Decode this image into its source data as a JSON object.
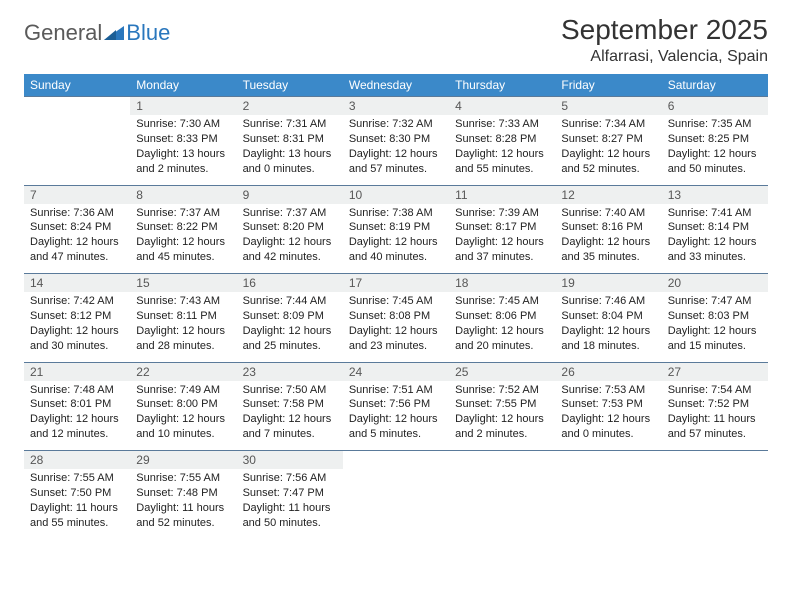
{
  "logo": {
    "text1": "General",
    "text2": "Blue"
  },
  "title": "September 2025",
  "location": "Alfarrasi, Valencia, Spain",
  "colors": {
    "header_bg": "#3b89c9",
    "header_text": "#ffffff",
    "daynum_bg": "#eef0f0",
    "border": "#5a7a9a",
    "logo_gray": "#5a5a5a",
    "logo_blue": "#2a77bd"
  },
  "day_headers": [
    "Sunday",
    "Monday",
    "Tuesday",
    "Wednesday",
    "Thursday",
    "Friday",
    "Saturday"
  ],
  "weeks": [
    [
      null,
      {
        "n": "1",
        "sr": "Sunrise: 7:30 AM",
        "ss": "Sunset: 8:33 PM",
        "dl": "Daylight: 13 hours and 2 minutes."
      },
      {
        "n": "2",
        "sr": "Sunrise: 7:31 AM",
        "ss": "Sunset: 8:31 PM",
        "dl": "Daylight: 13 hours and 0 minutes."
      },
      {
        "n": "3",
        "sr": "Sunrise: 7:32 AM",
        "ss": "Sunset: 8:30 PM",
        "dl": "Daylight: 12 hours and 57 minutes."
      },
      {
        "n": "4",
        "sr": "Sunrise: 7:33 AM",
        "ss": "Sunset: 8:28 PM",
        "dl": "Daylight: 12 hours and 55 minutes."
      },
      {
        "n": "5",
        "sr": "Sunrise: 7:34 AM",
        "ss": "Sunset: 8:27 PM",
        "dl": "Daylight: 12 hours and 52 minutes."
      },
      {
        "n": "6",
        "sr": "Sunrise: 7:35 AM",
        "ss": "Sunset: 8:25 PM",
        "dl": "Daylight: 12 hours and 50 minutes."
      }
    ],
    [
      {
        "n": "7",
        "sr": "Sunrise: 7:36 AM",
        "ss": "Sunset: 8:24 PM",
        "dl": "Daylight: 12 hours and 47 minutes."
      },
      {
        "n": "8",
        "sr": "Sunrise: 7:37 AM",
        "ss": "Sunset: 8:22 PM",
        "dl": "Daylight: 12 hours and 45 minutes."
      },
      {
        "n": "9",
        "sr": "Sunrise: 7:37 AM",
        "ss": "Sunset: 8:20 PM",
        "dl": "Daylight: 12 hours and 42 minutes."
      },
      {
        "n": "10",
        "sr": "Sunrise: 7:38 AM",
        "ss": "Sunset: 8:19 PM",
        "dl": "Daylight: 12 hours and 40 minutes."
      },
      {
        "n": "11",
        "sr": "Sunrise: 7:39 AM",
        "ss": "Sunset: 8:17 PM",
        "dl": "Daylight: 12 hours and 37 minutes."
      },
      {
        "n": "12",
        "sr": "Sunrise: 7:40 AM",
        "ss": "Sunset: 8:16 PM",
        "dl": "Daylight: 12 hours and 35 minutes."
      },
      {
        "n": "13",
        "sr": "Sunrise: 7:41 AM",
        "ss": "Sunset: 8:14 PM",
        "dl": "Daylight: 12 hours and 33 minutes."
      }
    ],
    [
      {
        "n": "14",
        "sr": "Sunrise: 7:42 AM",
        "ss": "Sunset: 8:12 PM",
        "dl": "Daylight: 12 hours and 30 minutes."
      },
      {
        "n": "15",
        "sr": "Sunrise: 7:43 AM",
        "ss": "Sunset: 8:11 PM",
        "dl": "Daylight: 12 hours and 28 minutes."
      },
      {
        "n": "16",
        "sr": "Sunrise: 7:44 AM",
        "ss": "Sunset: 8:09 PM",
        "dl": "Daylight: 12 hours and 25 minutes."
      },
      {
        "n": "17",
        "sr": "Sunrise: 7:45 AM",
        "ss": "Sunset: 8:08 PM",
        "dl": "Daylight: 12 hours and 23 minutes."
      },
      {
        "n": "18",
        "sr": "Sunrise: 7:45 AM",
        "ss": "Sunset: 8:06 PM",
        "dl": "Daylight: 12 hours and 20 minutes."
      },
      {
        "n": "19",
        "sr": "Sunrise: 7:46 AM",
        "ss": "Sunset: 8:04 PM",
        "dl": "Daylight: 12 hours and 18 minutes."
      },
      {
        "n": "20",
        "sr": "Sunrise: 7:47 AM",
        "ss": "Sunset: 8:03 PM",
        "dl": "Daylight: 12 hours and 15 minutes."
      }
    ],
    [
      {
        "n": "21",
        "sr": "Sunrise: 7:48 AM",
        "ss": "Sunset: 8:01 PM",
        "dl": "Daylight: 12 hours and 12 minutes."
      },
      {
        "n": "22",
        "sr": "Sunrise: 7:49 AM",
        "ss": "Sunset: 8:00 PM",
        "dl": "Daylight: 12 hours and 10 minutes."
      },
      {
        "n": "23",
        "sr": "Sunrise: 7:50 AM",
        "ss": "Sunset: 7:58 PM",
        "dl": "Daylight: 12 hours and 7 minutes."
      },
      {
        "n": "24",
        "sr": "Sunrise: 7:51 AM",
        "ss": "Sunset: 7:56 PM",
        "dl": "Daylight: 12 hours and 5 minutes."
      },
      {
        "n": "25",
        "sr": "Sunrise: 7:52 AM",
        "ss": "Sunset: 7:55 PM",
        "dl": "Daylight: 12 hours and 2 minutes."
      },
      {
        "n": "26",
        "sr": "Sunrise: 7:53 AM",
        "ss": "Sunset: 7:53 PM",
        "dl": "Daylight: 12 hours and 0 minutes."
      },
      {
        "n": "27",
        "sr": "Sunrise: 7:54 AM",
        "ss": "Sunset: 7:52 PM",
        "dl": "Daylight: 11 hours and 57 minutes."
      }
    ],
    [
      {
        "n": "28",
        "sr": "Sunrise: 7:55 AM",
        "ss": "Sunset: 7:50 PM",
        "dl": "Daylight: 11 hours and 55 minutes."
      },
      {
        "n": "29",
        "sr": "Sunrise: 7:55 AM",
        "ss": "Sunset: 7:48 PM",
        "dl": "Daylight: 11 hours and 52 minutes."
      },
      {
        "n": "30",
        "sr": "Sunrise: 7:56 AM",
        "ss": "Sunset: 7:47 PM",
        "dl": "Daylight: 11 hours and 50 minutes."
      },
      null,
      null,
      null,
      null
    ]
  ]
}
